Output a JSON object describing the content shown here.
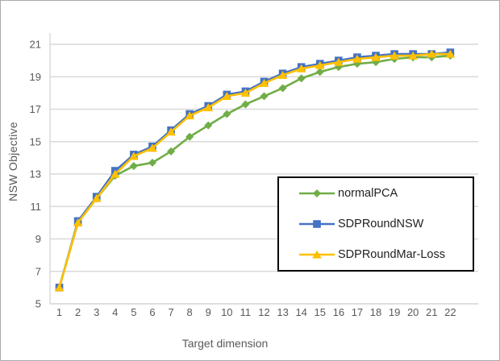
{
  "window": {
    "background": "#ffffff",
    "border_color": "#ABABAB"
  },
  "chart_data": {
    "type": "line",
    "title": "",
    "xlabel": "Target dimension",
    "ylabel": "NSW Objective",
    "x": [
      1,
      2,
      3,
      4,
      5,
      6,
      7,
      8,
      9,
      10,
      11,
      12,
      13,
      14,
      15,
      16,
      17,
      18,
      19,
      20,
      21,
      22
    ],
    "yticks": [
      5,
      7,
      9,
      11,
      13,
      15,
      17,
      19,
      21
    ],
    "ylim": [
      5,
      21
    ],
    "grid": true,
    "gridline_color": "#D9D9D9",
    "tick_label_color": "#595959",
    "legend_position": "inside-bottom-right",
    "series": [
      {
        "name": "normalPCA",
        "color": "#70AD47",
        "marker": "diamond",
        "values": [
          6.0,
          10.0,
          11.5,
          12.9,
          13.5,
          13.7,
          14.4,
          15.3,
          16.0,
          16.7,
          17.3,
          17.8,
          18.3,
          18.9,
          19.3,
          19.6,
          19.8,
          19.9,
          20.1,
          20.2,
          20.2,
          20.3
        ]
      },
      {
        "name": "SDPRoundNSW",
        "color": "#4472C4",
        "marker": "square",
        "values": [
          6.0,
          10.1,
          11.6,
          13.2,
          14.2,
          14.7,
          15.7,
          16.7,
          17.2,
          17.9,
          18.1,
          18.7,
          19.2,
          19.6,
          19.8,
          20.0,
          20.2,
          20.3,
          20.4,
          20.4,
          20.4,
          20.5
        ]
      },
      {
        "name": "SDPRoundMar-Loss",
        "color": "#FFC000",
        "marker": "triangle",
        "values": [
          6.0,
          10.0,
          11.5,
          13.0,
          14.1,
          14.6,
          15.6,
          16.6,
          17.1,
          17.8,
          18.0,
          18.6,
          19.1,
          19.5,
          19.7,
          19.9,
          20.1,
          20.2,
          20.3,
          20.3,
          20.4,
          20.4
        ]
      }
    ]
  }
}
